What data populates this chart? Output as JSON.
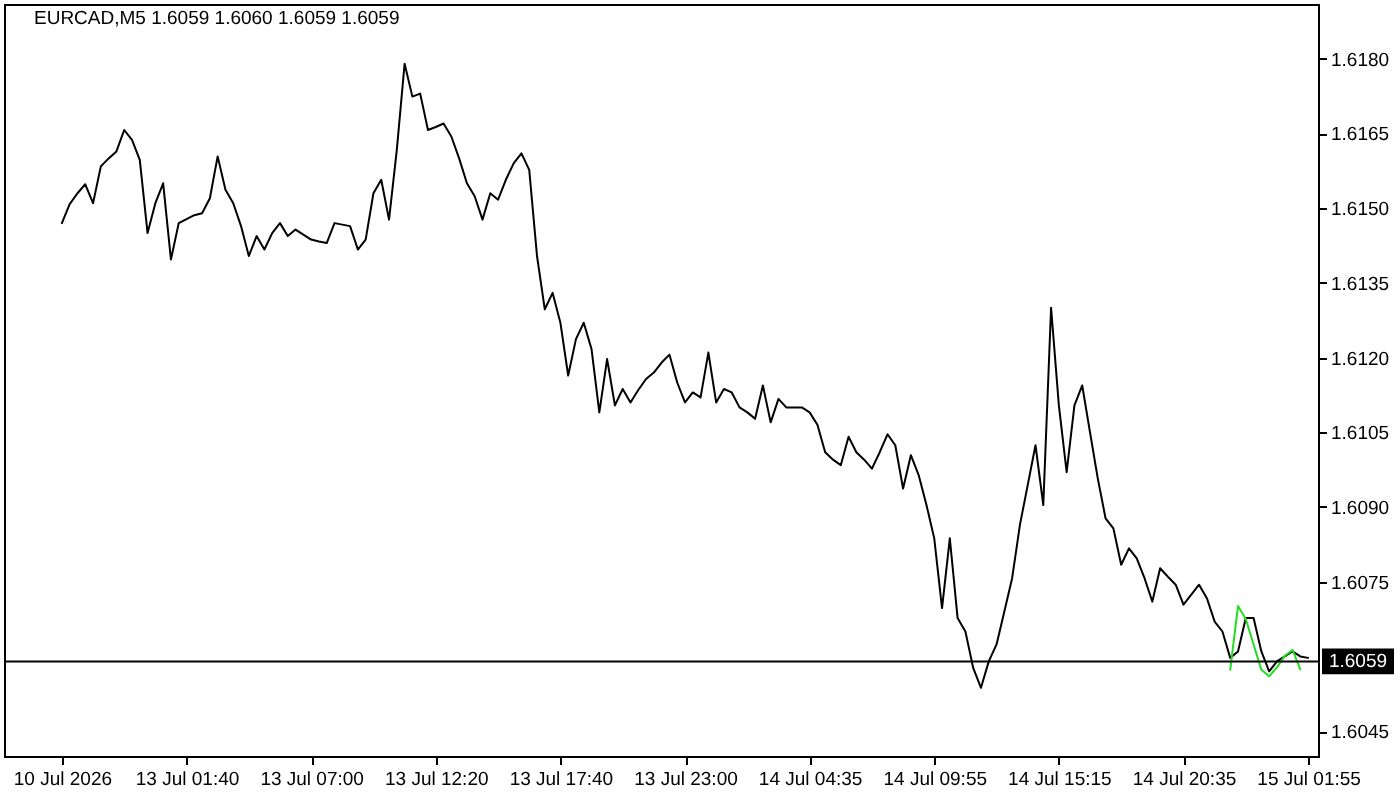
{
  "chart_data": {
    "type": "line",
    "title": "EURCAD,M5 1.6059 1.6060 1.6059 1.6059",
    "categories": [
      "10 Jul 2026",
      null,
      null,
      null,
      null,
      null,
      null,
      null,
      null,
      null,
      null,
      null,
      null,
      null,
      null,
      null,
      "13 Jul 01:40",
      null,
      null,
      null,
      null,
      null,
      null,
      null,
      null,
      null,
      null,
      null,
      null,
      null,
      null,
      null,
      "13 Jul 07:00",
      null,
      null,
      null,
      null,
      null,
      null,
      null,
      null,
      null,
      null,
      null,
      null,
      null,
      null,
      null,
      "13 Jul 12:20",
      null,
      null,
      null,
      null,
      null,
      null,
      null,
      null,
      null,
      null,
      null,
      null,
      null,
      null,
      null,
      "13 Jul 17:40",
      null,
      null,
      null,
      null,
      null,
      null,
      null,
      null,
      null,
      null,
      null,
      null,
      null,
      null,
      null,
      "13 Jul 23:00",
      null,
      null,
      null,
      null,
      null,
      null,
      null,
      null,
      null,
      null,
      null,
      null,
      null,
      null,
      null,
      "14 Jul 04:35",
      null,
      null,
      null,
      null,
      null,
      null,
      null,
      null,
      null,
      null,
      null,
      null,
      null,
      null,
      null,
      "14 Jul 09:55",
      null,
      null,
      null,
      null,
      null,
      null,
      null,
      null,
      null,
      null,
      null,
      null,
      null,
      null,
      null,
      "14 Jul 15:15",
      null,
      null,
      null,
      null,
      null,
      null,
      null,
      null,
      null,
      null,
      null,
      null,
      null,
      null,
      null,
      "14 Jul 20:35",
      null,
      null,
      null,
      null,
      null,
      null,
      null,
      null,
      null,
      null,
      null,
      null,
      null,
      null,
      null,
      "15 Jul 01:55"
    ],
    "ylim": [
      1.604,
      1.6191
    ],
    "yticks": [
      1.6045,
      1.6075,
      {
        "value": 1.609,
        "label": "1.6090"
      },
      1.6105,
      {
        "value": 1.612,
        "label": "1.6120"
      },
      1.6135,
      {
        "value": 1.615,
        "label": "1.6150"
      },
      1.6165,
      {
        "value": 1.618,
        "label": "1.6180"
      }
    ],
    "series": [
      {
        "color": "#000000",
        "values": [
          1.6147,
          1.61508,
          1.6153,
          1.61548,
          1.6151,
          1.61584,
          1.616,
          1.61614,
          1.61657,
          1.61637,
          1.61597,
          1.6145,
          1.6151,
          1.6155,
          1.61397,
          1.6147,
          1.61478,
          1.61486,
          1.6149,
          1.6152,
          1.61604,
          1.61537,
          1.6151,
          1.61464,
          1.61404,
          1.61444,
          1.61417,
          1.6145,
          1.6147,
          1.61444,
          1.61457,
          1.61447,
          1.61437,
          1.61433,
          1.6143,
          1.6147,
          1.61467,
          1.61464,
          1.61417,
          1.61437,
          1.6153,
          1.61557,
          1.61477,
          1.61617,
          1.6179,
          1.61724,
          1.6173,
          1.61657,
          1.61663,
          1.6167,
          1.61644,
          1.616,
          1.6155,
          1.61524,
          1.61477,
          1.6153,
          1.61517,
          1.61557,
          1.6159,
          1.6161,
          1.61577,
          1.61404,
          1.61297,
          1.6133,
          1.6127,
          1.61164,
          1.61237,
          1.6127,
          1.61217,
          1.6109,
          1.61197,
          1.61104,
          1.61137,
          1.6111,
          1.61135,
          1.61157,
          1.6117,
          1.6119,
          1.61206,
          1.6115,
          1.6111,
          1.6113,
          1.6112,
          1.6121,
          1.6111,
          1.61137,
          1.6113,
          1.611,
          1.6109,
          1.61077,
          1.61144,
          1.6107,
          1.61117,
          1.611,
          1.611,
          1.611,
          1.6109,
          1.61065,
          1.6101,
          1.60995,
          1.60984,
          1.61041,
          1.6101,
          1.60995,
          1.60977,
          1.6101,
          1.61046,
          1.61024,
          1.60937,
          1.61004,
          1.60964,
          1.60904,
          1.60837,
          1.60697,
          1.60837,
          1.60677,
          1.6065,
          1.60577,
          1.60537,
          1.6059,
          1.60624,
          1.6069,
          1.60757,
          1.60864,
          1.60944,
          1.61024,
          1.60904,
          1.613,
          1.61104,
          1.6097,
          1.61104,
          1.61144,
          1.6105,
          1.60957,
          1.60877,
          1.60857,
          1.60784,
          1.60817,
          1.60797,
          1.60757,
          1.6071,
          1.60777,
          1.6076,
          1.60744,
          1.60704,
          1.60724,
          1.60744,
          1.60717,
          1.6067,
          1.6065,
          1.60597,
          1.6061,
          1.60677,
          1.60677,
          1.6061,
          1.6057,
          1.6059,
          1.606,
          1.6061,
          1.606,
          1.60597
        ]
      },
      {
        "color": "#22dd22",
        "values": [
          null,
          null,
          null,
          null,
          null,
          null,
          null,
          null,
          null,
          null,
          null,
          null,
          null,
          null,
          null,
          null,
          null,
          null,
          null,
          null,
          null,
          null,
          null,
          null,
          null,
          null,
          null,
          null,
          null,
          null,
          null,
          null,
          null,
          null,
          null,
          null,
          null,
          null,
          null,
          null,
          null,
          null,
          null,
          null,
          null,
          null,
          null,
          null,
          null,
          null,
          null,
          null,
          null,
          null,
          null,
          null,
          null,
          null,
          null,
          null,
          null,
          null,
          null,
          null,
          null,
          null,
          null,
          null,
          null,
          null,
          null,
          null,
          null,
          null,
          null,
          null,
          null,
          null,
          null,
          null,
          null,
          null,
          null,
          null,
          null,
          null,
          null,
          null,
          null,
          null,
          null,
          null,
          null,
          null,
          null,
          null,
          null,
          null,
          null,
          null,
          null,
          null,
          null,
          null,
          null,
          null,
          null,
          null,
          null,
          null,
          null,
          null,
          null,
          null,
          null,
          null,
          null,
          null,
          null,
          null,
          null,
          null,
          null,
          null,
          null,
          null,
          null,
          null,
          null,
          null,
          null,
          null,
          null,
          null,
          null,
          null,
          null,
          null,
          null,
          null,
          null,
          null,
          null,
          null,
          null,
          null,
          null,
          null,
          null,
          null,
          1.60573,
          1.60701,
          1.60675,
          1.60624,
          1.60573,
          1.6056,
          1.60578,
          1.60601,
          1.60613,
          1.60574,
          null
        ]
      }
    ],
    "ref_lines": [
      {
        "axis": "y",
        "value": 1.6059,
        "label": "1.6059",
        "color": "#000000"
      }
    ],
    "grid": false,
    "legend": false,
    "marker": "none",
    "line_style": "solid"
  }
}
